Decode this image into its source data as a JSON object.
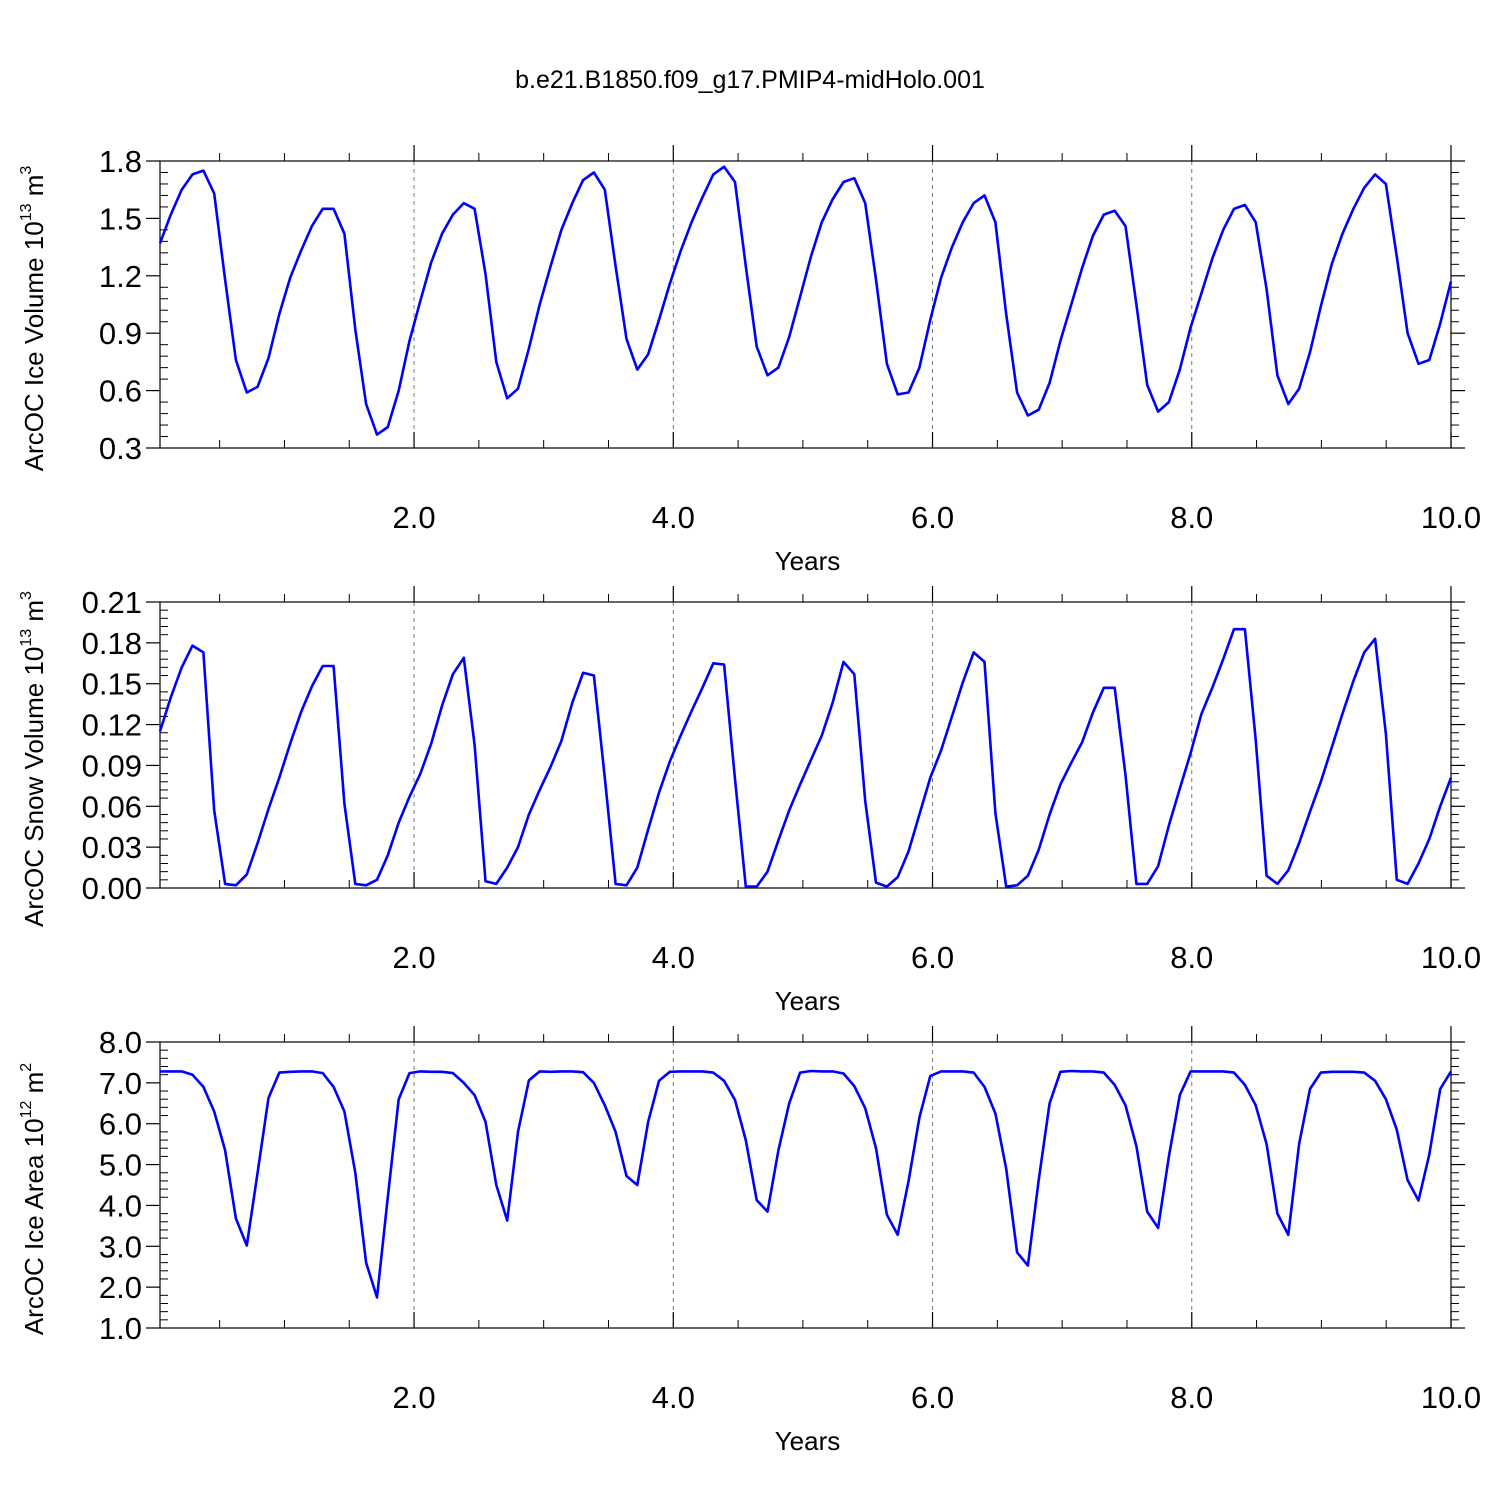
{
  "title": "b.e21.B1850.f09_g17.PMIP4-midHolo.001",
  "colors": {
    "line": "#0000ff",
    "axis": "#000000",
    "grid": "#777777"
  },
  "chart_data": [
    {
      "type": "line",
      "xlabel": "Years",
      "ylabel_main": "ArcOC Ice Volume 10",
      "ylabel_exp": "13",
      "ylabel_unit": " m",
      "ylabel_unit_exp": "3",
      "xlim": [
        0.04,
        10.0
      ],
      "ylim": [
        0.3,
        1.8
      ],
      "xticks": [
        2.0,
        4.0,
        6.0,
        8.0,
        10.0
      ],
      "xtick_labels": [
        "2.0",
        "4.0",
        "6.0",
        "8.0",
        "10.0"
      ],
      "yticks": [
        0.3,
        0.6,
        0.9,
        1.2,
        1.5,
        1.8
      ],
      "ytick_labels": [
        "0.3",
        "0.6",
        "0.9",
        "1.2",
        "1.5",
        "1.8"
      ],
      "vgrid": [
        2.0,
        4.0,
        6.0,
        8.0
      ],
      "series": [
        {
          "values": [
            1.37,
            1.52,
            1.65,
            1.73,
            1.75,
            1.63,
            1.18,
            0.76,
            0.59,
            0.62,
            0.77,
            1.0,
            1.19,
            1.33,
            1.46,
            1.55,
            1.55,
            1.42,
            0.92,
            0.53,
            0.37,
            0.41,
            0.6,
            0.86,
            1.07,
            1.27,
            1.42,
            1.52,
            1.58,
            1.55,
            1.21,
            0.75,
            0.56,
            0.61,
            0.82,
            1.05,
            1.25,
            1.44,
            1.58,
            1.7,
            1.74,
            1.65,
            1.25,
            0.87,
            0.71,
            0.79,
            0.97,
            1.16,
            1.33,
            1.48,
            1.61,
            1.73,
            1.77,
            1.69,
            1.25,
            0.83,
            0.68,
            0.72,
            0.88,
            1.09,
            1.3,
            1.48,
            1.6,
            1.69,
            1.71,
            1.58,
            1.18,
            0.74,
            0.58,
            0.59,
            0.72,
            0.97,
            1.19,
            1.35,
            1.48,
            1.58,
            1.62,
            1.48,
            1.0,
            0.59,
            0.47,
            0.5,
            0.64,
            0.86,
            1.05,
            1.24,
            1.41,
            1.52,
            1.54,
            1.46,
            1.05,
            0.63,
            0.49,
            0.54,
            0.71,
            0.93,
            1.11,
            1.29,
            1.44,
            1.55,
            1.57,
            1.48,
            1.13,
            0.68,
            0.53,
            0.61,
            0.8,
            1.04,
            1.26,
            1.42,
            1.55,
            1.66,
            1.73,
            1.68,
            1.3,
            0.9,
            0.74,
            0.76,
            0.95,
            1.17
          ]
        }
      ]
    },
    {
      "type": "line",
      "xlabel": "Years",
      "ylabel_main": "ArcOC Snow Volume 10",
      "ylabel_exp": "13",
      "ylabel_unit": " m",
      "ylabel_unit_exp": "3",
      "xlim": [
        0.04,
        10.0
      ],
      "ylim": [
        0.0,
        0.21
      ],
      "xticks": [
        2.0,
        4.0,
        6.0,
        8.0,
        10.0
      ],
      "xtick_labels": [
        "2.0",
        "4.0",
        "6.0",
        "8.0",
        "10.0"
      ],
      "yticks": [
        0.0,
        0.03,
        0.06,
        0.09,
        0.12,
        0.15,
        0.18,
        0.21
      ],
      "ytick_labels": [
        "0.00",
        "0.03",
        "0.06",
        "0.09",
        "0.12",
        "0.15",
        "0.18",
        "0.21"
      ],
      "vgrid": [
        2.0,
        4.0,
        6.0,
        8.0
      ],
      "series": [
        {
          "values": [
            0.115,
            0.14,
            0.162,
            0.178,
            0.173,
            0.057,
            0.003,
            0.002,
            0.01,
            0.033,
            0.058,
            0.081,
            0.106,
            0.129,
            0.148,
            0.163,
            0.163,
            0.062,
            0.003,
            0.002,
            0.006,
            0.024,
            0.048,
            0.067,
            0.084,
            0.106,
            0.134,
            0.157,
            0.169,
            0.105,
            0.005,
            0.003,
            0.015,
            0.03,
            0.054,
            0.072,
            0.089,
            0.108,
            0.136,
            0.158,
            0.156,
            0.081,
            0.003,
            0.002,
            0.015,
            0.043,
            0.07,
            0.093,
            0.112,
            0.13,
            0.147,
            0.165,
            0.164,
            0.08,
            0.001,
            0.001,
            0.012,
            0.035,
            0.057,
            0.076,
            0.094,
            0.112,
            0.136,
            0.166,
            0.157,
            0.064,
            0.004,
            0.001,
            0.008,
            0.027,
            0.054,
            0.081,
            0.101,
            0.126,
            0.151,
            0.173,
            0.166,
            0.055,
            0.001,
            0.002,
            0.009,
            0.028,
            0.054,
            0.076,
            0.092,
            0.107,
            0.129,
            0.147,
            0.147,
            0.083,
            0.003,
            0.003,
            0.016,
            0.046,
            0.073,
            0.099,
            0.128,
            0.147,
            0.168,
            0.19,
            0.19,
            0.109,
            0.009,
            0.003,
            0.013,
            0.033,
            0.056,
            0.078,
            0.103,
            0.128,
            0.152,
            0.173,
            0.183,
            0.113,
            0.006,
            0.003,
            0.018,
            0.036,
            0.06,
            0.081
          ]
        }
      ]
    },
    {
      "type": "line",
      "xlabel": "Years",
      "ylabel_main": "ArcOC Ice Area 10",
      "ylabel_exp": "12",
      "ylabel_unit": " m",
      "ylabel_unit_exp": "2",
      "xlim": [
        0.04,
        10.0
      ],
      "ylim": [
        1.0,
        8.0
      ],
      "xticks": [
        2.0,
        4.0,
        6.0,
        8.0,
        10.0
      ],
      "xtick_labels": [
        "2.0",
        "4.0",
        "6.0",
        "8.0",
        "10.0"
      ],
      "yticks": [
        1.0,
        2.0,
        3.0,
        4.0,
        5.0,
        6.0,
        7.0,
        8.0
      ],
      "ytick_labels": [
        "1.0",
        "2.0",
        "3.0",
        "4.0",
        "5.0",
        "6.0",
        "7.0",
        "8.0"
      ],
      "vgrid": [
        2.0,
        4.0,
        6.0,
        8.0
      ],
      "series": [
        {
          "values": [
            7.28,
            7.28,
            7.28,
            7.2,
            6.9,
            6.3,
            5.35,
            3.68,
            3.02,
            4.8,
            6.63,
            7.25,
            7.27,
            7.28,
            7.28,
            7.24,
            6.9,
            6.3,
            4.8,
            2.6,
            1.75,
            4.2,
            6.6,
            7.24,
            7.28,
            7.27,
            7.27,
            7.24,
            7.0,
            6.7,
            6.05,
            4.5,
            3.63,
            5.8,
            7.06,
            7.28,
            7.27,
            7.28,
            7.28,
            7.26,
            7.0,
            6.45,
            5.8,
            4.72,
            4.5,
            6.05,
            7.05,
            7.27,
            7.28,
            7.28,
            7.28,
            7.25,
            7.05,
            6.58,
            5.6,
            4.13,
            3.85,
            5.35,
            6.5,
            7.25,
            7.29,
            7.28,
            7.28,
            7.23,
            6.92,
            6.38,
            5.4,
            3.77,
            3.28,
            4.6,
            6.15,
            7.17,
            7.28,
            7.28,
            7.28,
            7.25,
            6.9,
            6.25,
            4.9,
            2.85,
            2.53,
            4.62,
            6.5,
            7.27,
            7.29,
            7.28,
            7.28,
            7.25,
            6.95,
            6.45,
            5.45,
            3.85,
            3.45,
            5.2,
            6.7,
            7.28,
            7.28,
            7.28,
            7.28,
            7.25,
            6.95,
            6.45,
            5.5,
            3.8,
            3.28,
            5.5,
            6.85,
            7.25,
            7.27,
            7.27,
            7.27,
            7.25,
            7.05,
            6.6,
            5.85,
            4.62,
            4.12,
            5.25,
            6.85,
            7.28
          ]
        }
      ]
    }
  ]
}
